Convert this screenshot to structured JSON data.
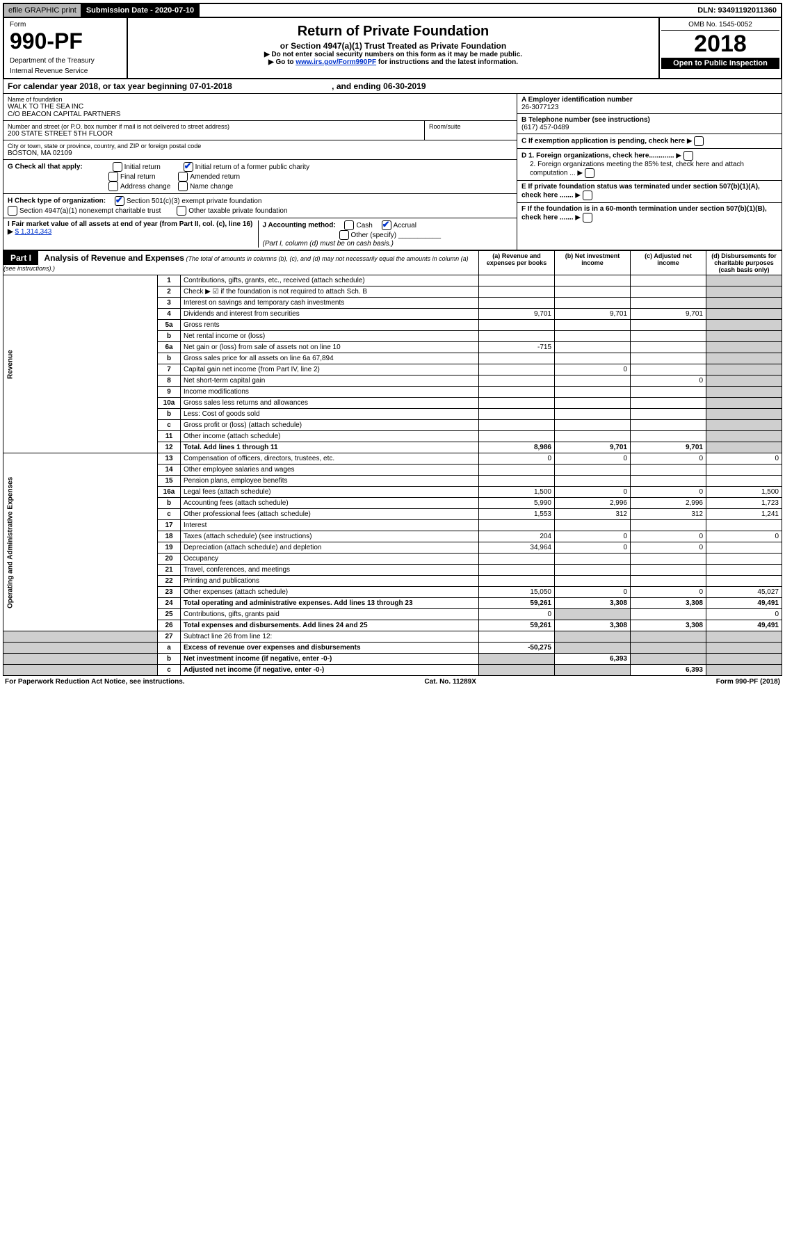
{
  "topbar": {
    "efile": "efile GRAPHIC print",
    "submission_label": "Submission Date - 2020-07-10",
    "dln": "DLN: 93491192011360"
  },
  "header": {
    "form_label": "Form",
    "form_number": "990-PF",
    "dept1": "Department of the Treasury",
    "dept2": "Internal Revenue Service",
    "title": "Return of Private Foundation",
    "subtitle": "or Section 4947(a)(1) Trust Treated as Private Foundation",
    "note1": "▶ Do not enter social security numbers on this form as it may be made public.",
    "note2_pre": "▶ Go to ",
    "note2_link": "www.irs.gov/Form990PF",
    "note2_post": " for instructions and the latest information.",
    "omb": "OMB No. 1545-0052",
    "year": "2018",
    "open_public": "Open to Public Inspection"
  },
  "calendar": {
    "text": "For calendar year 2018, or tax year beginning 07-01-2018",
    "ending": ", and ending 06-30-2019"
  },
  "name": {
    "label": "Name of foundation",
    "line1": "WALK TO THE SEA INC",
    "line2": "C/O BEACON CAPITAL PARTNERS"
  },
  "address": {
    "label": "Number and street (or P.O. box number if mail is not delivered to street address)",
    "val": "200 STATE STREET 5TH FLOOR",
    "suite_label": "Room/suite"
  },
  "city": {
    "label": "City or town, state or province, country, and ZIP or foreign postal code",
    "val": "BOSTON, MA  02109"
  },
  "ein": {
    "label": "A Employer identification number",
    "val": "26-3077123"
  },
  "phone": {
    "label": "B Telephone number (see instructions)",
    "val": "(617) 457-0489"
  },
  "boxC": "C If exemption application is pending, check here",
  "boxD1": "D 1. Foreign organizations, check here.............",
  "boxD2": "2. Foreign organizations meeting the 85% test, check here and attach computation ...",
  "boxE": "E  If private foundation status was terminated under section 507(b)(1)(A), check here .......",
  "boxF": "F  If the foundation is in a 60-month termination under section 507(b)(1)(B), check here .......",
  "G": {
    "label": "G Check all that apply:",
    "opts": [
      "Initial return",
      "Initial return of a former public charity",
      "Final return",
      "Amended return",
      "Address change",
      "Name change"
    ]
  },
  "H": {
    "label": "H Check type of organization:",
    "opt1": "Section 501(c)(3) exempt private foundation",
    "opt2": "Section 4947(a)(1) nonexempt charitable trust",
    "opt3": "Other taxable private foundation"
  },
  "I": {
    "label": "I Fair market value of all assets at end of year (from Part II, col. (c), line 16) ▶",
    "val": "$  1,314,343"
  },
  "J": {
    "label": "J Accounting method:",
    "cash": "Cash",
    "accrual": "Accrual",
    "other": "Other (specify)",
    "note": "(Part I, column (d) must be on cash basis.)"
  },
  "part1": {
    "label": "Part I",
    "title": "Analysis of Revenue and Expenses",
    "sub": "(The total of amounts in columns (b), (c), and (d) may not necessarily equal the amounts in column (a) (see instructions).)",
    "col_a": "(a)   Revenue and expenses per books",
    "col_b": "(b)  Net investment income",
    "col_c": "(c)  Adjusted net income",
    "col_d": "(d)  Disbursements for charitable purposes (cash basis only)"
  },
  "sides": {
    "revenue": "Revenue",
    "expenses": "Operating and Administrative Expenses"
  },
  "rows": [
    {
      "n": "1",
      "d": "Contributions, gifts, grants, etc., received (attach schedule)"
    },
    {
      "n": "2",
      "d": "Check ▶ ☑ if the foundation is not required to attach Sch. B"
    },
    {
      "n": "3",
      "d": "Interest on savings and temporary cash investments"
    },
    {
      "n": "4",
      "d": "Dividends and interest from securities",
      "a": "9,701",
      "b": "9,701",
      "c": "9,701"
    },
    {
      "n": "5a",
      "d": "Gross rents"
    },
    {
      "n": "b",
      "d": "Net rental income or (loss)"
    },
    {
      "n": "6a",
      "d": "Net gain or (loss) from sale of assets not on line 10",
      "a": "-715"
    },
    {
      "n": "b",
      "d": "Gross sales price for all assets on line 6a            67,894"
    },
    {
      "n": "7",
      "d": "Capital gain net income (from Part IV, line 2)",
      "b": "0"
    },
    {
      "n": "8",
      "d": "Net short-term capital gain",
      "c": "0"
    },
    {
      "n": "9",
      "d": "Income modifications"
    },
    {
      "n": "10a",
      "d": "Gross sales less returns and allowances"
    },
    {
      "n": "b",
      "d": "Less: Cost of goods sold"
    },
    {
      "n": "c",
      "d": "Gross profit or (loss) (attach schedule)"
    },
    {
      "n": "11",
      "d": "Other income (attach schedule)"
    },
    {
      "n": "12",
      "d": "Total. Add lines 1 through 11",
      "a": "8,986",
      "b": "9,701",
      "c": "9,701",
      "bold": true
    }
  ],
  "exp_rows": [
    {
      "n": "13",
      "d": "Compensation of officers, directors, trustees, etc.",
      "a": "0",
      "b": "0",
      "c": "0",
      "dd": "0"
    },
    {
      "n": "14",
      "d": "Other employee salaries and wages"
    },
    {
      "n": "15",
      "d": "Pension plans, employee benefits"
    },
    {
      "n": "16a",
      "d": "Legal fees (attach schedule)",
      "a": "1,500",
      "b": "0",
      "c": "0",
      "dd": "1,500"
    },
    {
      "n": "b",
      "d": "Accounting fees (attach schedule)",
      "a": "5,990",
      "b": "2,996",
      "c": "2,996",
      "dd": "1,723"
    },
    {
      "n": "c",
      "d": "Other professional fees (attach schedule)",
      "a": "1,553",
      "b": "312",
      "c": "312",
      "dd": "1,241"
    },
    {
      "n": "17",
      "d": "Interest"
    },
    {
      "n": "18",
      "d": "Taxes (attach schedule) (see instructions)",
      "a": "204",
      "b": "0",
      "c": "0",
      "dd": "0"
    },
    {
      "n": "19",
      "d": "Depreciation (attach schedule) and depletion",
      "a": "34,964",
      "b": "0",
      "c": "0"
    },
    {
      "n": "20",
      "d": "Occupancy"
    },
    {
      "n": "21",
      "d": "Travel, conferences, and meetings"
    },
    {
      "n": "22",
      "d": "Printing and publications"
    },
    {
      "n": "23",
      "d": "Other expenses (attach schedule)",
      "a": "15,050",
      "b": "0",
      "c": "0",
      "dd": "45,027"
    },
    {
      "n": "24",
      "d": "Total operating and administrative expenses. Add lines 13 through 23",
      "a": "59,261",
      "b": "3,308",
      "c": "3,308",
      "dd": "49,491",
      "bold": true
    },
    {
      "n": "25",
      "d": "Contributions, gifts, grants paid",
      "a": "0",
      "dd": "0"
    },
    {
      "n": "26",
      "d": "Total expenses and disbursements. Add lines 24 and 25",
      "a": "59,261",
      "b": "3,308",
      "c": "3,308",
      "dd": "49,491",
      "bold": true
    }
  ],
  "final_rows": [
    {
      "n": "27",
      "d": "Subtract line 26 from line 12:"
    },
    {
      "n": "a",
      "d": "Excess of revenue over expenses and disbursements",
      "a": "-50,275",
      "bold": true
    },
    {
      "n": "b",
      "d": "Net investment income (if negative, enter -0-)",
      "b": "6,393",
      "bold": true
    },
    {
      "n": "c",
      "d": "Adjusted net income (if negative, enter -0-)",
      "c": "6,393",
      "bold": true
    }
  ],
  "footer": {
    "left": "For Paperwork Reduction Act Notice, see instructions.",
    "mid": "Cat. No. 11289X",
    "right": "Form 990-PF (2018)"
  }
}
